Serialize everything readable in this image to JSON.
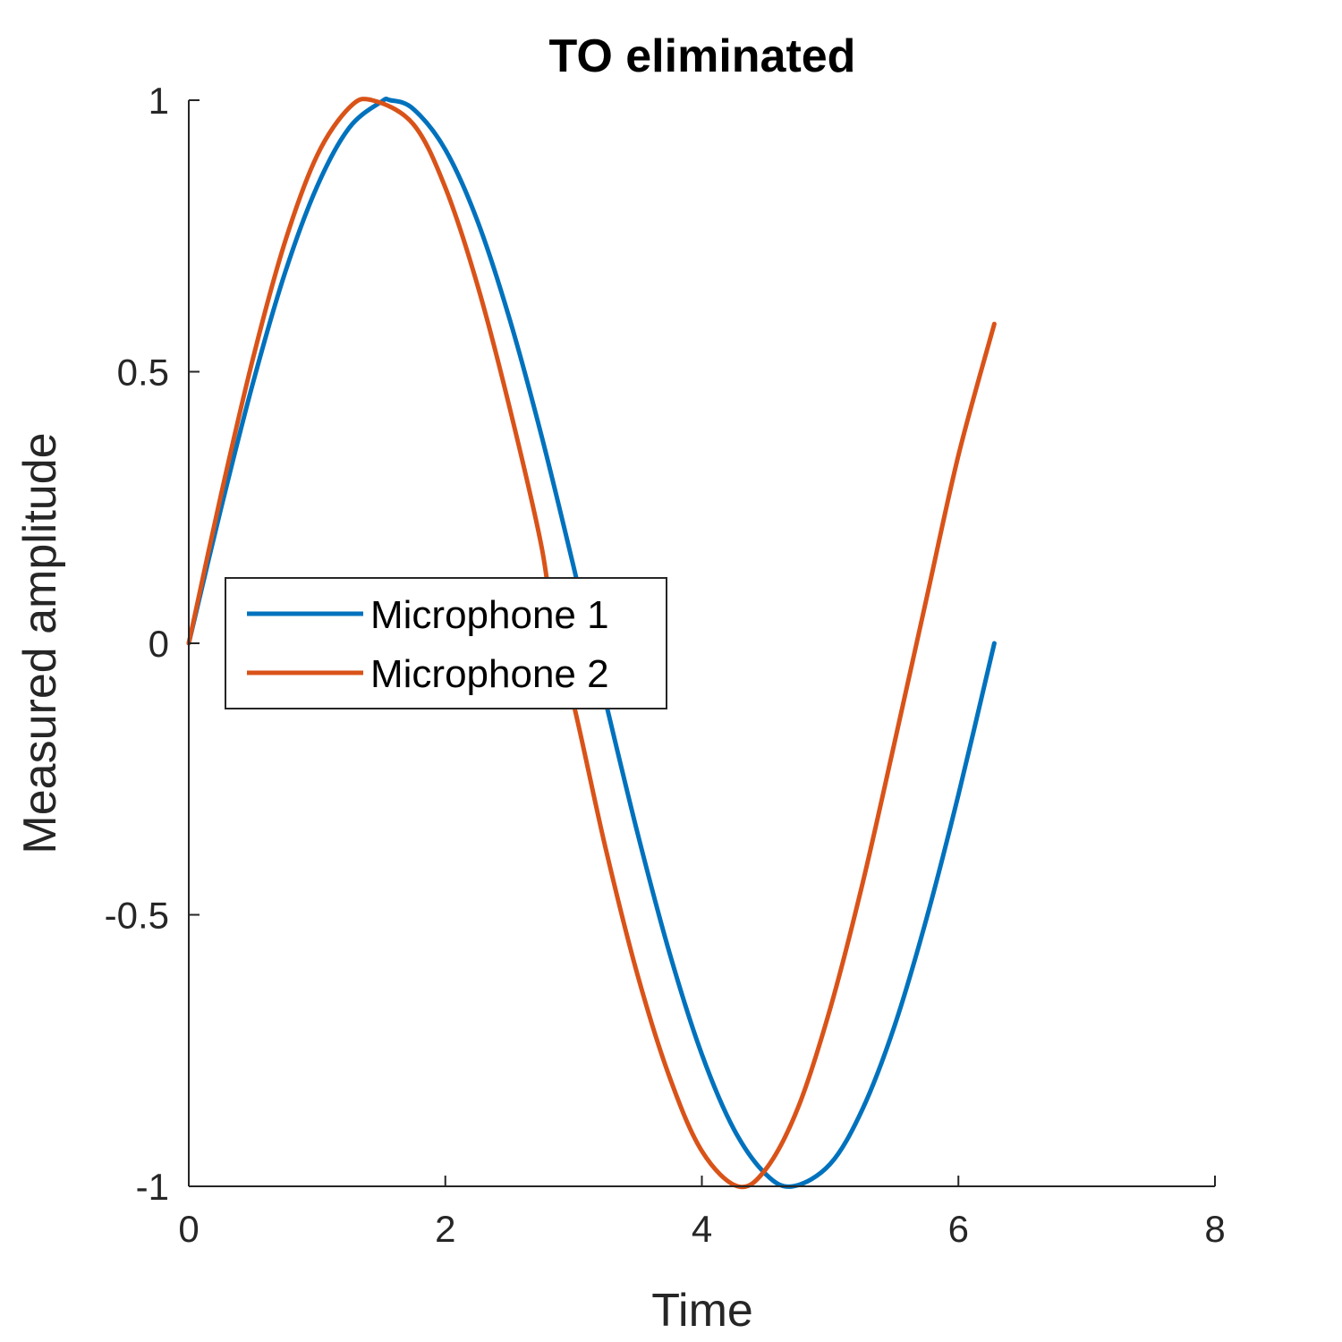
{
  "chart_data": {
    "type": "line",
    "title": "TO eliminated",
    "xlabel": "Time",
    "ylabel": "Measured amplitude",
    "xlim": [
      0,
      8
    ],
    "ylim": [
      -1,
      1
    ],
    "xticks": [
      0,
      2,
      4,
      6,
      8
    ],
    "yticks": [
      -1,
      -0.5,
      0,
      0.5,
      1
    ],
    "xtick_labels": [
      "0",
      "2",
      "4",
      "6",
      "8"
    ],
    "ytick_labels": [
      "-1",
      "-0.5",
      "0",
      "0.5",
      "1"
    ],
    "grid": false,
    "legend_position": "middle-left",
    "series": [
      {
        "name": "Microphone 1",
        "color": "#0072BD",
        "x": [
          0,
          0.25,
          0.5,
          0.75,
          1.0,
          1.25,
          1.5,
          1.57,
          1.75,
          2.0,
          2.25,
          2.5,
          2.75,
          3.0,
          3.14,
          3.25,
          3.5,
          3.75,
          4.0,
          4.25,
          4.5,
          4.71,
          5.0,
          5.25,
          5.5,
          5.75,
          6.0,
          6.28
        ],
        "y": [
          0,
          0.247,
          0.479,
          0.682,
          0.841,
          0.949,
          0.997,
          1.0,
          0.984,
          0.909,
          0.778,
          0.598,
          0.382,
          0.141,
          0.0,
          -0.108,
          -0.351,
          -0.572,
          -0.757,
          -0.895,
          -0.978,
          -1.0,
          -0.959,
          -0.859,
          -0.706,
          -0.508,
          -0.279,
          0.0
        ]
      },
      {
        "name": "Microphone 2",
        "color": "#D95319",
        "x": [
          0,
          0.25,
          0.5,
          0.75,
          1.0,
          1.25,
          1.43,
          1.75,
          2.0,
          2.25,
          2.5,
          2.75,
          2.86,
          3.0,
          3.25,
          3.5,
          3.75,
          4.0,
          4.28,
          4.5,
          4.75,
          5.0,
          5.25,
          5.5,
          5.75,
          6.0,
          6.28
        ],
        "y": [
          0,
          0.272,
          0.524,
          0.739,
          0.898,
          0.986,
          1.0,
          0.956,
          0.839,
          0.66,
          0.435,
          0.178,
          0.0,
          -0.112,
          -0.378,
          -0.612,
          -0.8,
          -0.935,
          -1.0,
          -0.968,
          -0.855,
          -0.673,
          -0.445,
          -0.185,
          0.081,
          0.346,
          0.588
        ]
      }
    ]
  }
}
